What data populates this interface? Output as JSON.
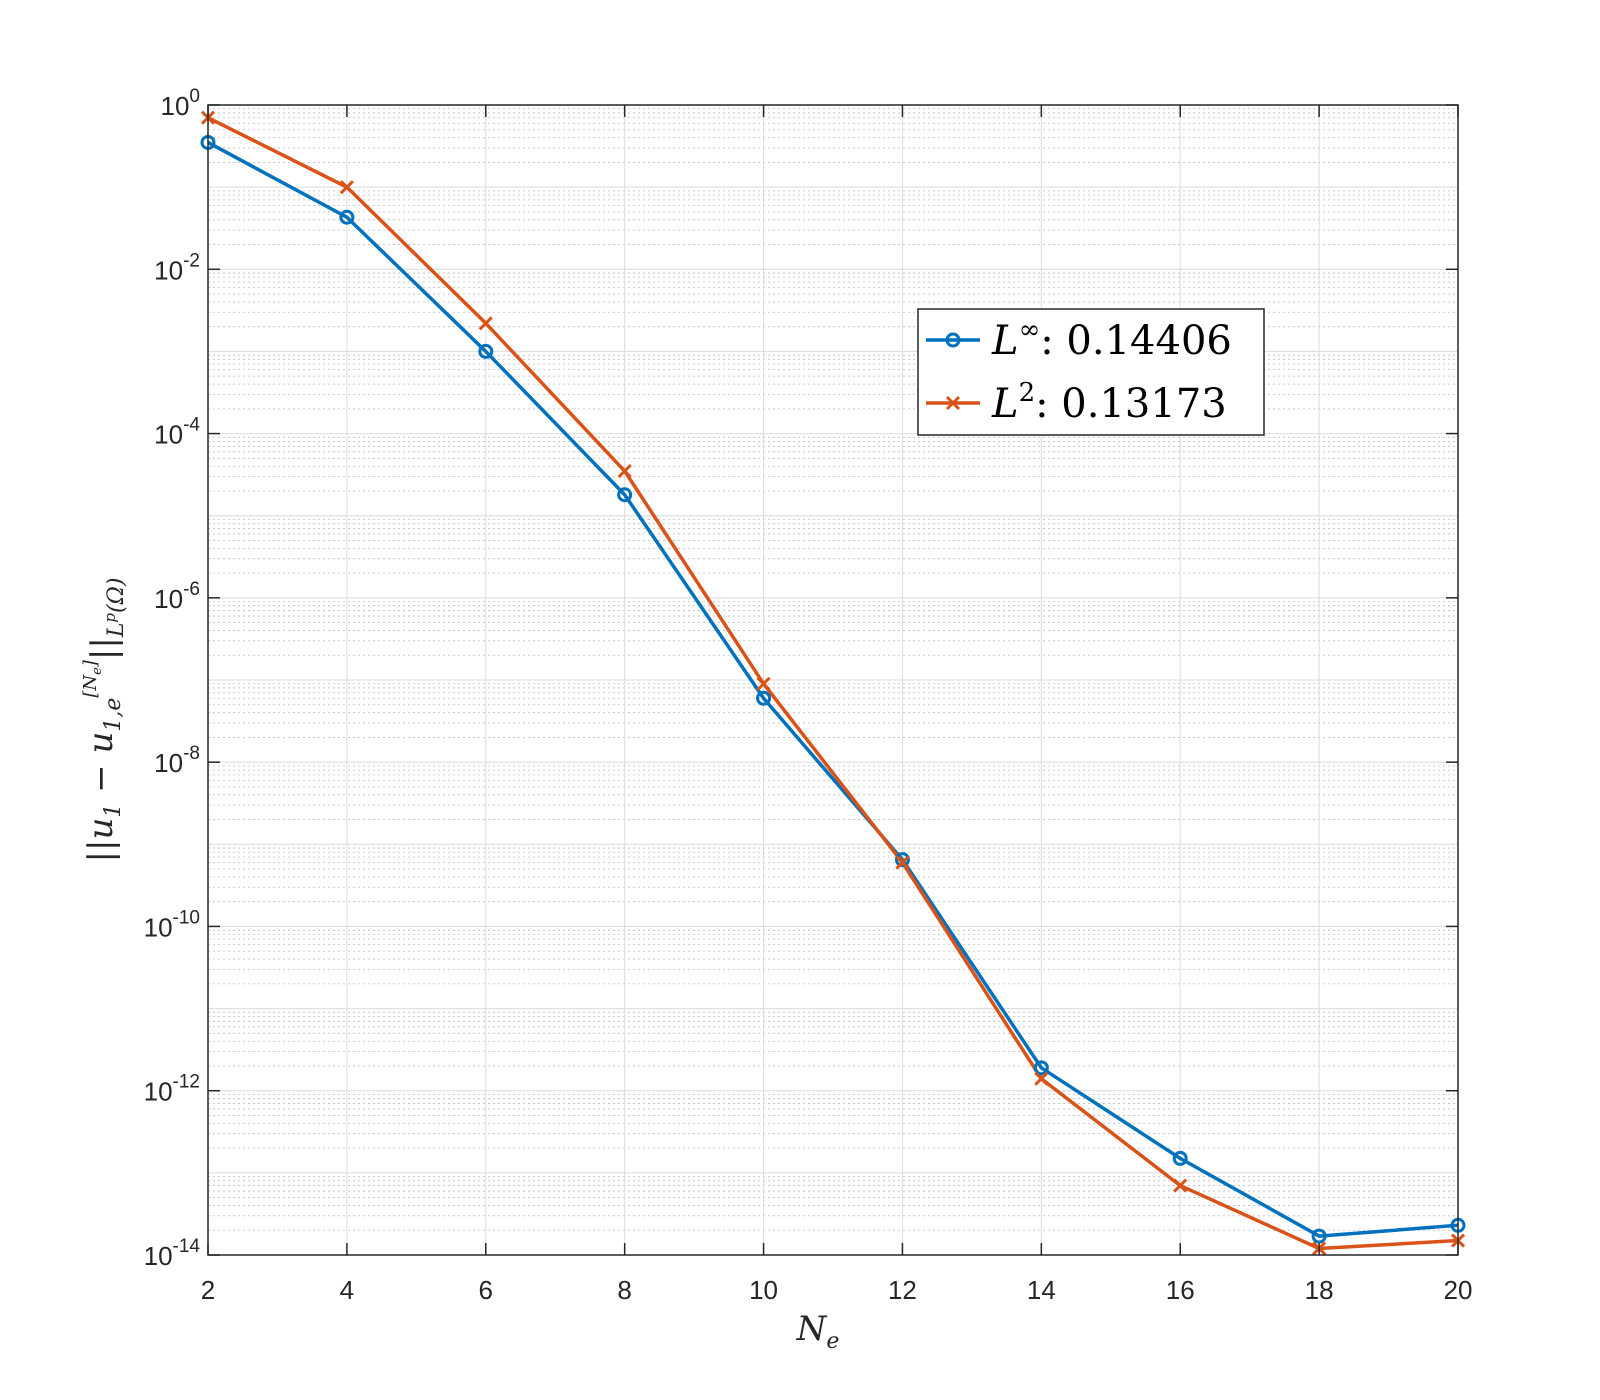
{
  "chart_data": {
    "type": "line",
    "title": "",
    "xlabel": "N_e",
    "ylabel": "||u_1 - u_{1,e}^{[N_e]}||_{L^p(Ω)}",
    "xlim": [
      2,
      20
    ],
    "ylim": [
      1e-14,
      1
    ],
    "yscale": "log",
    "grid": true,
    "minor_grid": true,
    "legend_position": "upper-right",
    "xticks": [
      2,
      4,
      6,
      8,
      10,
      12,
      14,
      16,
      18,
      20
    ],
    "yticks": [
      {
        "value": 1,
        "base": "10",
        "exp": "0"
      },
      {
        "value": 0.01,
        "base": "10",
        "exp": "-2"
      },
      {
        "value": 0.0001,
        "base": "10",
        "exp": "-4"
      },
      {
        "value": 1e-06,
        "base": "10",
        "exp": "-6"
      },
      {
        "value": 1e-08,
        "base": "10",
        "exp": "-8"
      },
      {
        "value": 1e-10,
        "base": "10",
        "exp": "-10"
      },
      {
        "value": 1e-12,
        "base": "10",
        "exp": "-12"
      },
      {
        "value": 1e-14,
        "base": "10",
        "exp": "-14"
      }
    ],
    "series": [
      {
        "name": "L^∞: 0.14406",
        "legend_main": "L",
        "legend_sup": "∞",
        "legend_rest": ": 0.14406",
        "color": "#0072BD",
        "marker": "circle",
        "x": [
          2,
          4,
          6,
          8,
          10,
          12,
          14,
          16,
          18,
          20
        ],
        "y": [
          0.35,
          0.043,
          0.001,
          1.8e-05,
          6e-08,
          6.5e-10,
          1.9e-12,
          1.5e-13,
          1.7e-14,
          2.3e-14
        ]
      },
      {
        "name": "L^2: 0.13173",
        "legend_main": "L",
        "legend_sup": "2",
        "legend_rest": ": 0.13173",
        "color": "#D95319",
        "marker": "x",
        "x": [
          2,
          4,
          6,
          8,
          10,
          12,
          14,
          16,
          18,
          20
        ],
        "y": [
          0.7,
          0.1,
          0.0022,
          3.5e-05,
          9e-08,
          6e-10,
          1.4e-12,
          7e-14,
          1.2e-14,
          1.5e-14
        ]
      }
    ]
  }
}
